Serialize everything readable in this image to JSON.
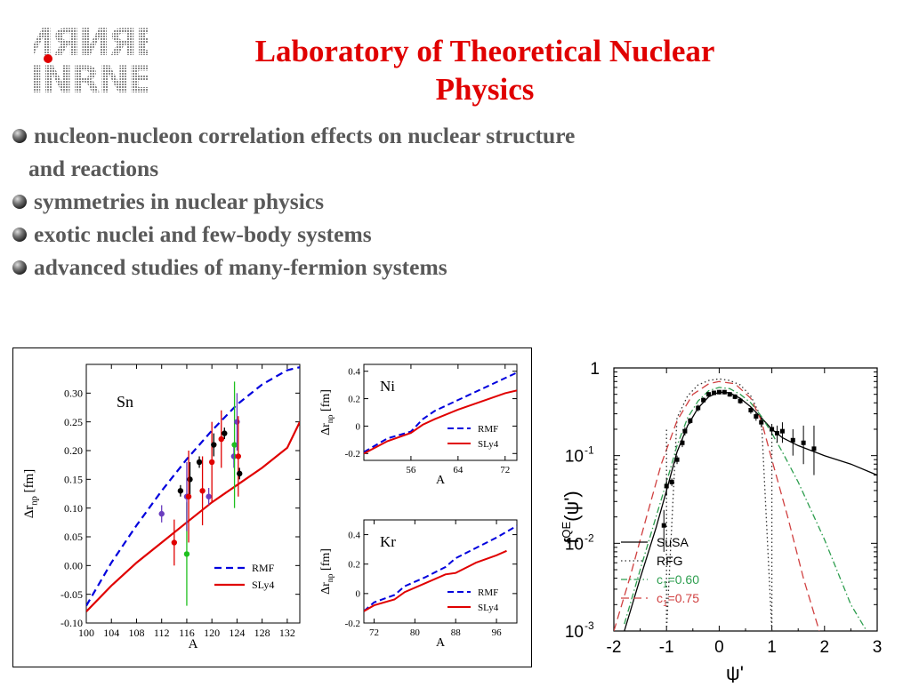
{
  "logo": {
    "line1": "ИЯИЯЕ",
    "line2": "INRNE"
  },
  "title": {
    "line1": "Laboratory of  Theoretical Nuclear",
    "line2": "Physics"
  },
  "bullets": [
    {
      "line1": "nucleon-nucleon correlation effects on nuclear structure",
      "line2": "and reactions"
    },
    {
      "line1": "symmetries in nuclear physics"
    },
    {
      "line1": "exotic nuclei and few-body systems"
    },
    {
      "line1": "advanced studies of many-fermion systems"
    }
  ],
  "chart_data": [
    {
      "type": "line",
      "panel_label": "Sn",
      "xlabel": "A",
      "ylabel": "Δr_np [fm]",
      "xlim": [
        100,
        134
      ],
      "ylim": [
        -0.1,
        0.35
      ],
      "xticks": [
        "100",
        "104",
        "108",
        "112",
        "116",
        "120",
        "124",
        "128",
        "132"
      ],
      "yticks": [
        "-0.10",
        "-0.05",
        "0.00",
        "0.05",
        "0.10",
        "0.15",
        "0.20",
        "0.25",
        "0.30"
      ],
      "legend": "bottom-right",
      "series": [
        {
          "name": "RMF",
          "color": "#0000dd",
          "dash": true,
          "x": [
            100,
            104,
            108,
            112,
            116,
            120,
            124,
            128,
            132,
            134
          ],
          "y": [
            -0.07,
            0.005,
            0.07,
            0.13,
            0.185,
            0.235,
            0.28,
            0.315,
            0.34,
            0.345
          ]
        },
        {
          "name": "SLy4",
          "color": "#e00000",
          "dash": false,
          "x": [
            100,
            104,
            108,
            112,
            116,
            120,
            124,
            128,
            132,
            134
          ],
          "y": [
            -0.08,
            -0.035,
            0.005,
            0.04,
            0.075,
            0.11,
            0.14,
            0.17,
            0.205,
            0.25
          ]
        }
      ],
      "points": [
        {
          "x": 112,
          "y": 0.09,
          "err": 0.015,
          "color": "#6a3dbf"
        },
        {
          "x": 114,
          "y": 0.04,
          "err": 0.04,
          "color": "#e00000"
        },
        {
          "x": 115,
          "y": 0.13,
          "err": 0.01,
          "color": "#000000"
        },
        {
          "x": 116,
          "y": 0.02,
          "err": 0.09,
          "color": "#1ec01e"
        },
        {
          "x": 116,
          "y": 0.12,
          "err": 0.06,
          "color": "#6a3dbf"
        },
        {
          "x": 116.5,
          "y": 0.15,
          "err": 0.03,
          "color": "#000000"
        },
        {
          "x": 116.3,
          "y": 0.12,
          "err": 0.08,
          "color": "#e00000"
        },
        {
          "x": 118,
          "y": 0.18,
          "err": 0.01,
          "color": "#000000"
        },
        {
          "x": 118.5,
          "y": 0.13,
          "err": 0.06,
          "color": "#e00000"
        },
        {
          "x": 119.5,
          "y": 0.12,
          "err": 0.015,
          "color": "#6a3dbf"
        },
        {
          "x": 120,
          "y": 0.18,
          "err": 0.07,
          "color": "#e00000"
        },
        {
          "x": 120.3,
          "y": 0.21,
          "err": 0.02,
          "color": "#000000"
        },
        {
          "x": 121.5,
          "y": 0.22,
          "err": 0.05,
          "color": "#e00000"
        },
        {
          "x": 122,
          "y": 0.23,
          "err": 0.01,
          "color": "#000000"
        },
        {
          "x": 123.5,
          "y": 0.19,
          "err": 0.02,
          "color": "#6a3dbf"
        },
        {
          "x": 123.6,
          "y": 0.21,
          "err": 0.11,
          "color": "#1ec01e"
        },
        {
          "x": 124,
          "y": 0.25,
          "err": 0.05,
          "color": "#6a3dbf"
        },
        {
          "x": 124.2,
          "y": 0.19,
          "err": 0.07,
          "color": "#e00000"
        },
        {
          "x": 124.4,
          "y": 0.16,
          "err": 0.01,
          "color": "#000000"
        }
      ]
    },
    {
      "type": "line",
      "panel_label": "Ni",
      "xlabel": "A",
      "ylabel": "Δr_np [fm]",
      "xlim": [
        48,
        74
      ],
      "ylim": [
        -0.25,
        0.45
      ],
      "xticks": [
        "56",
        "64",
        "72"
      ],
      "yticks": [
        "-0.2",
        "0",
        "0.2",
        "0.4"
      ],
      "legend": "bottom-right",
      "series": [
        {
          "name": "RMF",
          "color": "#0000dd",
          "dash": true,
          "x": [
            48,
            52,
            56,
            58,
            60,
            64,
            68,
            72,
            74
          ],
          "y": [
            -0.19,
            -0.09,
            -0.04,
            0.05,
            0.11,
            0.19,
            0.27,
            0.35,
            0.39
          ]
        },
        {
          "name": "SLy4",
          "color": "#e00000",
          "dash": false,
          "x": [
            48,
            52,
            56,
            58,
            60,
            64,
            68,
            72,
            74
          ],
          "y": [
            -0.2,
            -0.11,
            -0.05,
            0.01,
            0.05,
            0.12,
            0.18,
            0.24,
            0.26
          ]
        }
      ]
    },
    {
      "type": "line",
      "panel_label": "Kr",
      "xlabel": "A",
      "ylabel": "Δr_np [fm]",
      "xlim": [
        70,
        100
      ],
      "ylim": [
        -0.2,
        0.5
      ],
      "xticks": [
        "72",
        "80",
        "88",
        "96"
      ],
      "yticks": [
        "-0.2",
        "0",
        "0.2",
        "0.4"
      ],
      "legend": "bottom-right",
      "series": [
        {
          "name": "RMF",
          "color": "#0000dd",
          "dash": true,
          "x": [
            70,
            72,
            76,
            78,
            82,
            86,
            88,
            92,
            96,
            100
          ],
          "y": [
            -0.12,
            -0.06,
            -0.01,
            0.05,
            0.11,
            0.18,
            0.24,
            0.31,
            0.38,
            0.46
          ]
        },
        {
          "name": "SLy4",
          "color": "#e00000",
          "dash": false,
          "x": [
            70,
            72,
            76,
            78,
            82,
            86,
            88,
            92,
            96,
            98
          ],
          "y": [
            -0.12,
            -0.08,
            -0.04,
            0.01,
            0.07,
            0.13,
            0.14,
            0.21,
            0.26,
            0.29
          ]
        }
      ]
    },
    {
      "type": "line",
      "xlabel": "ψ'",
      "ylabel": "f^QE(ψ')",
      "xlim": [
        -2,
        3
      ],
      "ylim": [
        0.001,
        1
      ],
      "log_y": true,
      "xticks": [
        "-2",
        "-1",
        "0",
        "1",
        "2",
        "3"
      ],
      "yticks": [
        {
          "text": "1"
        },
        {
          "base": "10",
          "exp": "-1"
        },
        {
          "base": "10",
          "exp": "-2"
        },
        {
          "base": "10",
          "exp": "-3"
        }
      ],
      "legend": "bottom-left",
      "series": [
        {
          "name": "SuSA",
          "color": "#000000",
          "style": "solid",
          "x": [
            -1.8,
            -1.5,
            -1.2,
            -1.0,
            -0.8,
            -0.6,
            -0.4,
            -0.2,
            0,
            0.2,
            0.4,
            0.6,
            0.8,
            1.0,
            1.2,
            1.5,
            2.0,
            2.5,
            3.0
          ],
          "y": [
            0.001,
            0.004,
            0.015,
            0.04,
            0.11,
            0.22,
            0.35,
            0.47,
            0.53,
            0.52,
            0.45,
            0.36,
            0.27,
            0.2,
            0.16,
            0.13,
            0.1,
            0.08,
            0.06
          ]
        },
        {
          "name": "RFG",
          "color": "#333333",
          "style": "dotted",
          "x": [
            -1.0,
            -0.8,
            -0.6,
            -0.4,
            -0.2,
            0,
            0.2,
            0.4,
            0.6,
            0.8,
            1.0
          ],
          "y": [
            0.001,
            0.27,
            0.48,
            0.64,
            0.72,
            0.75,
            0.72,
            0.64,
            0.48,
            0.27,
            0.001
          ]
        },
        {
          "name": "c1=0.60",
          "color": "#2e9e4f",
          "style": "dashdot",
          "x": [
            -1.8,
            -1.5,
            -1.2,
            -1.0,
            -0.8,
            -0.6,
            -0.4,
            -0.2,
            0,
            0.2,
            0.4,
            0.6,
            0.8,
            1.0,
            1.2,
            1.5,
            2.0,
            2.5,
            2.8
          ],
          "y": [
            0.0012,
            0.005,
            0.02,
            0.05,
            0.13,
            0.27,
            0.42,
            0.55,
            0.6,
            0.58,
            0.5,
            0.4,
            0.28,
            0.18,
            0.11,
            0.05,
            0.011,
            0.002,
            0.001
          ]
        },
        {
          "name": "c1=0.75",
          "color": "#d04040",
          "style": "dashed",
          "x": [
            -2.0,
            -1.7,
            -1.4,
            -1.1,
            -0.8,
            -0.5,
            -0.2,
            0,
            0.3,
            0.6,
            0.8,
            1.0,
            1.3,
            1.6,
            1.9
          ],
          "y": [
            0.001,
            0.004,
            0.018,
            0.08,
            0.25,
            0.5,
            0.66,
            0.7,
            0.66,
            0.45,
            0.25,
            0.09,
            0.02,
            0.004,
            0.001
          ]
        }
      ],
      "points": [
        {
          "x": -1.05,
          "y": 0.016,
          "err_lo": 0.008,
          "err_hi": 0.008
        },
        {
          "x": -1.0,
          "y": 0.045,
          "err_lo": 0.01,
          "err_hi": 0.01
        },
        {
          "x": -0.9,
          "y": 0.05,
          "err_lo": 0.005,
          "err_hi": 0.005
        },
        {
          "x": -0.8,
          "y": 0.09,
          "err_lo": 0.01,
          "err_hi": 0.01
        },
        {
          "x": -0.7,
          "y": 0.14,
          "err_lo": 0.015,
          "err_hi": 0.015
        },
        {
          "x": -0.65,
          "y": 0.19,
          "err_lo": 0.02,
          "err_hi": 0.02
        },
        {
          "x": -0.55,
          "y": 0.25,
          "err_lo": 0.02,
          "err_hi": 0.02
        },
        {
          "x": -0.4,
          "y": 0.35,
          "err_lo": 0.03,
          "err_hi": 0.03
        },
        {
          "x": -0.3,
          "y": 0.43,
          "err_lo": 0.03,
          "err_hi": 0.03
        },
        {
          "x": -0.2,
          "y": 0.5,
          "err_lo": 0.03,
          "err_hi": 0.03
        },
        {
          "x": -0.1,
          "y": 0.52,
          "err_lo": 0.03,
          "err_hi": 0.03
        },
        {
          "x": 0.0,
          "y": 0.53,
          "err_lo": 0.03,
          "err_hi": 0.03
        },
        {
          "x": 0.1,
          "y": 0.53,
          "err_lo": 0.03,
          "err_hi": 0.03
        },
        {
          "x": 0.2,
          "y": 0.5,
          "err_lo": 0.03,
          "err_hi": 0.03
        },
        {
          "x": 0.3,
          "y": 0.47,
          "err_lo": 0.03,
          "err_hi": 0.03
        },
        {
          "x": 0.4,
          "y": 0.42,
          "err_lo": 0.03,
          "err_hi": 0.03
        },
        {
          "x": 0.6,
          "y": 0.33,
          "err_lo": 0.03,
          "err_hi": 0.03
        },
        {
          "x": 0.7,
          "y": 0.28,
          "err_lo": 0.03,
          "err_hi": 0.03
        },
        {
          "x": 0.8,
          "y": 0.24,
          "err_lo": 0.03,
          "err_hi": 0.03
        },
        {
          "x": 1.0,
          "y": 0.2,
          "err_lo": 0.03,
          "err_hi": 0.03
        },
        {
          "x": 1.1,
          "y": 0.18,
          "err_lo": 0.04,
          "err_hi": 0.04
        },
        {
          "x": 1.2,
          "y": 0.19,
          "err_lo": 0.05,
          "err_hi": 0.05
        },
        {
          "x": 1.4,
          "y": 0.15,
          "err_lo": 0.05,
          "err_hi": 0.05
        },
        {
          "x": 1.6,
          "y": 0.14,
          "err_lo": 0.06,
          "err_hi": 0.08
        },
        {
          "x": 1.8,
          "y": 0.12,
          "err_lo": 0.06,
          "err_hi": 0.1
        }
      ]
    }
  ]
}
